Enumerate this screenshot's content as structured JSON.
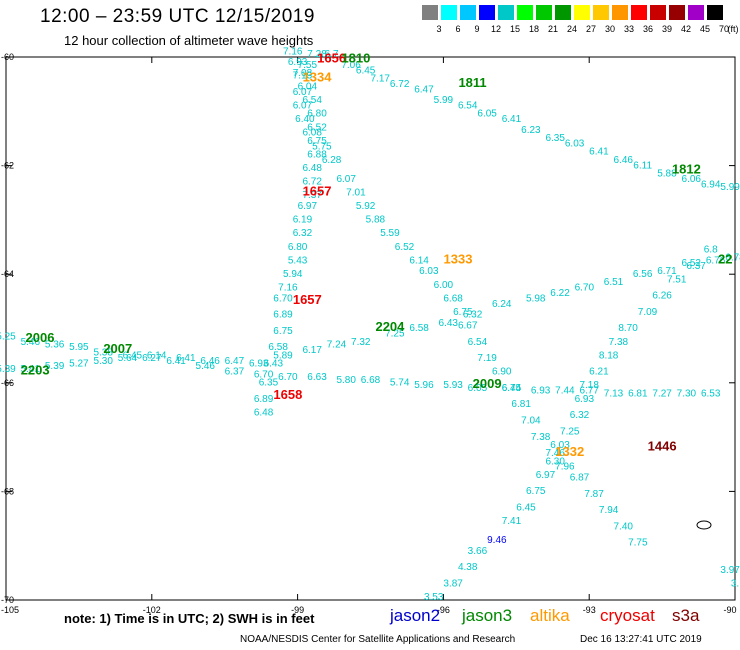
{
  "header": {
    "title": "12:00 – 23:59 UTC 12/15/2019",
    "subtitle": "12 hour collection of altimeter wave heights"
  },
  "color_scale": {
    "unit": "(ft)",
    "ticks": [
      "3",
      "6",
      "9",
      "12",
      "15",
      "18",
      "21",
      "24",
      "27",
      "30",
      "33",
      "36",
      "39",
      "42",
      "45",
      "70"
    ],
    "colors": [
      "#808080",
      "#00ffff",
      "#00c8ff",
      "#0000ff",
      "#00c8c8",
      "#00ff00",
      "#00c800",
      "#009600",
      "#ffff00",
      "#ffc800",
      "#ff9600",
      "#ff0000",
      "#c80000",
      "#960000",
      "#a000c8",
      "#000000"
    ]
  },
  "axes": {
    "lon_labels": [
      "-105",
      "-102",
      "-99",
      "-96",
      "-93",
      "-90"
    ],
    "lat_labels": [
      "-60",
      "-62",
      "-64",
      "-66",
      "-68",
      "-70"
    ]
  },
  "time_labels": [
    {
      "text": "1656",
      "sat": "cryosat",
      "lon": -98.3,
      "lat": -60.1
    },
    {
      "text": "1810",
      "sat": "jason3",
      "lon": -97.8,
      "lat": -60.1
    },
    {
      "text": "1334",
      "sat": "altika",
      "lon": -98.6,
      "lat": -60.45
    },
    {
      "text": "1811",
      "sat": "jason3",
      "lon": -95.4,
      "lat": -60.55
    },
    {
      "text": "1812",
      "sat": "jason3",
      "lon": -91.0,
      "lat": -62.15
    },
    {
      "text": "1657",
      "sat": "cryosat",
      "lon": -98.6,
      "lat": -62.55
    },
    {
      "text": "1333",
      "sat": "altika",
      "lon": -95.7,
      "lat": -63.8
    },
    {
      "text": "1657",
      "sat": "cryosat",
      "lon": -98.8,
      "lat": -64.55
    },
    {
      "text": "2204",
      "sat": "jason3",
      "lon": -97.1,
      "lat": -65.05
    },
    {
      "text": "2006",
      "sat": "jason3",
      "lon": -104.3,
      "lat": -65.25
    },
    {
      "text": "2007",
      "sat": "jason3",
      "lon": -102.7,
      "lat": -65.45
    },
    {
      "text": "2203",
      "sat": "jason3",
      "lon": -104.4,
      "lat": -65.85
    },
    {
      "text": "2009",
      "sat": "jason3",
      "lon": -95.1,
      "lat": -66.1
    },
    {
      "text": "1658",
      "sat": "cryosat",
      "lon": -99.2,
      "lat": -66.3
    },
    {
      "text": "1332",
      "sat": "altika",
      "lon": -93.4,
      "lat": -67.35
    },
    {
      "text": "1446",
      "sat": "s3a",
      "lon": -91.5,
      "lat": -67.25
    },
    {
      "text": "22",
      "sat": "jason3",
      "lon": -90.2,
      "lat": -63.8
    }
  ],
  "tracks": [
    {
      "name": "cryosat-descending",
      "points": [
        {
          "lon": -98.6,
          "lat": -60.0,
          "v": "7.28"
        },
        {
          "lon": -98.3,
          "lat": -60.0,
          "v": "6.7"
        },
        {
          "lon": -98.8,
          "lat": -60.2,
          "v": "7.55"
        },
        {
          "lon": -98.9,
          "lat": -60.4,
          "v": "7.13"
        },
        {
          "lon": -98.9,
          "lat": -60.7,
          "v": "6.07"
        },
        {
          "lon": -98.9,
          "lat": -60.95,
          "v": "6.07"
        },
        {
          "lon": -98.85,
          "lat": -61.2,
          "v": "6.40"
        },
        {
          "lon": -98.7,
          "lat": -61.45,
          "v": "6.08"
        },
        {
          "lon": -98.5,
          "lat": -61.7,
          "v": "5.75"
        },
        {
          "lon": -98.3,
          "lat": -61.95,
          "v": "6.28"
        },
        {
          "lon": -98.0,
          "lat": -62.3,
          "v": "6.07"
        },
        {
          "lon": -97.8,
          "lat": -62.55,
          "v": "7.01"
        },
        {
          "lon": -97.6,
          "lat": -62.8,
          "v": "5.92"
        },
        {
          "lon": -97.4,
          "lat": -63.05,
          "v": "5.88"
        },
        {
          "lon": -97.1,
          "lat": -63.3,
          "v": "5.59"
        },
        {
          "lon": -96.8,
          "lat": -63.55,
          "v": "6.52"
        },
        {
          "lon": -96.5,
          "lat": -63.8,
          "v": "6.14"
        },
        {
          "lon": -96.3,
          "lat": -64.0,
          "v": "6.03"
        },
        {
          "lon": -96.0,
          "lat": -64.25,
          "v": "6.00"
        },
        {
          "lon": -95.8,
          "lat": -64.5,
          "v": "6.68"
        },
        {
          "lon": -95.6,
          "lat": -64.75,
          "v": "6.75"
        },
        {
          "lon": -95.5,
          "lat": -65.0,
          "v": "6.67"
        },
        {
          "lon": -95.3,
          "lat": -65.3,
          "v": "6.54"
        },
        {
          "lon": -95.1,
          "lat": -65.6,
          "v": "7.19"
        },
        {
          "lon": -94.8,
          "lat": -65.85,
          "v": "6.90"
        },
        {
          "lon": -94.6,
          "lat": -66.15,
          "v": "6.74"
        },
        {
          "lon": -94.4,
          "lat": -66.45,
          "v": "6.81"
        },
        {
          "lon": -94.2,
          "lat": -66.75,
          "v": "7.04"
        },
        {
          "lon": -94.0,
          "lat": -67.05,
          "v": "7.38"
        },
        {
          "lon": -93.7,
          "lat": -67.35,
          "v": "7.46"
        },
        {
          "lon": -93.5,
          "lat": -67.6,
          "v": "7.96"
        },
        {
          "lon": -93.2,
          "lat": -67.8,
          "v": "6.87"
        },
        {
          "lon": -92.9,
          "lat": -68.1,
          "v": "7.87"
        },
        {
          "lon": -92.6,
          "lat": -68.4,
          "v": "7.94"
        },
        {
          "lon": -92.3,
          "lat": -68.7,
          "v": "7.40"
        },
        {
          "lon": -92.0,
          "lat": -69.0,
          "v": "7.75"
        }
      ]
    },
    {
      "name": "cryosat-ascending",
      "points": [
        {
          "lon": -99.7,
          "lat": -66.6,
          "v": "6.48"
        },
        {
          "lon": -99.7,
          "lat": -66.35,
          "v": "6.89"
        },
        {
          "lon": -99.6,
          "lat": -66.05,
          "v": "6.35"
        },
        {
          "lon": -99.5,
          "lat": -65.7,
          "v": "6.43"
        },
        {
          "lon": -99.4,
          "lat": -65.4,
          "v": "6.58"
        },
        {
          "lon": -99.3,
          "lat": -65.1,
          "v": "6.75"
        },
        {
          "lon": -99.3,
          "lat": -64.8,
          "v": "6.89"
        },
        {
          "lon": -99.3,
          "lat": -64.5,
          "v": "6.70"
        },
        {
          "lon": -99.2,
          "lat": -64.3,
          "v": "7.16"
        },
        {
          "lon": -99.1,
          "lat": -64.05,
          "v": "5.94"
        },
        {
          "lon": -99.0,
          "lat": -63.8,
          "v": "5.43"
        },
        {
          "lon": -99.0,
          "lat": -63.55,
          "v": "6.80"
        },
        {
          "lon": -98.9,
          "lat": -63.3,
          "v": "6.32"
        },
        {
          "lon": -98.9,
          "lat": -63.05,
          "v": "6.19"
        },
        {
          "lon": -98.8,
          "lat": -62.8,
          "v": "6.97"
        },
        {
          "lon": -98.7,
          "lat": -62.6,
          "v": "7.37"
        },
        {
          "lon": -98.7,
          "lat": -62.35,
          "v": "6.72"
        },
        {
          "lon": -98.7,
          "lat": -62.1,
          "v": "6.48"
        },
        {
          "lon": -98.6,
          "lat": -61.85,
          "v": "6.88"
        },
        {
          "lon": -98.6,
          "lat": -61.6,
          "v": "6.75"
        },
        {
          "lon": -98.6,
          "lat": -61.35,
          "v": "6.52"
        },
        {
          "lon": -98.6,
          "lat": -61.1,
          "v": "6.80"
        },
        {
          "lon": -98.7,
          "lat": -60.85,
          "v": "6.54"
        },
        {
          "lon": -98.8,
          "lat": -60.6,
          "v": "6.04"
        },
        {
          "lon": -98.9,
          "lat": -60.35,
          "v": "7.08"
        },
        {
          "lon": -99.0,
          "lat": -60.15,
          "v": "6.93"
        },
        {
          "lon": -99.1,
          "lat": -59.95,
          "v": "7.16"
        }
      ]
    },
    {
      "name": "jason3-east",
      "points": [
        {
          "lon": -97.9,
          "lat": -60.2,
          "v": "7.06"
        },
        {
          "lon": -97.6,
          "lat": -60.3,
          "v": "6.45"
        },
        {
          "lon": -97.3,
          "lat": -60.45,
          "v": "7.17"
        },
        {
          "lon": -96.9,
          "lat": -60.55,
          "v": "6.72"
        },
        {
          "lon": -96.4,
          "lat": -60.65,
          "v": "6.47"
        },
        {
          "lon": -96.0,
          "lat": -60.85,
          "v": "5.99"
        },
        {
          "lon": -95.5,
          "lat": -60.95,
          "v": "6.54"
        },
        {
          "lon": -95.1,
          "lat": -61.1,
          "v": "6.05"
        },
        {
          "lon": -94.6,
          "lat": -61.2,
          "v": "6.41"
        },
        {
          "lon": -94.2,
          "lat": -61.4,
          "v": "6.23"
        },
        {
          "lon": -93.7,
          "lat": -61.55,
          "v": "6.35"
        },
        {
          "lon": -93.3,
          "lat": -61.65,
          "v": "6.03"
        },
        {
          "lon": -92.8,
          "lat": -61.8,
          "v": "6.41"
        },
        {
          "lon": -92.3,
          "lat": -61.95,
          "v": "6.46"
        },
        {
          "lon": -91.9,
          "lat": -62.05,
          "v": "6.11"
        },
        {
          "lon": -91.4,
          "lat": -62.2,
          "v": "5.88"
        },
        {
          "lon": -90.9,
          "lat": -62.3,
          "v": "6.06"
        },
        {
          "lon": -90.5,
          "lat": -62.4,
          "v": "6.94"
        },
        {
          "lon": -90.1,
          "lat": -62.45,
          "v": "5.99"
        },
        {
          "lon": -89.7,
          "lat": -62.55,
          "v": "6.51"
        }
      ]
    },
    {
      "name": "jason3-west",
      "points": [
        {
          "lon": -105.0,
          "lat": -65.2,
          "v": "5.25"
        },
        {
          "lon": -104.5,
          "lat": -65.3,
          "v": "5.46"
        },
        {
          "lon": -104.0,
          "lat": -65.35,
          "v": "5.36"
        },
        {
          "lon": -103.5,
          "lat": -65.4,
          "v": "5.95"
        },
        {
          "lon": -103.0,
          "lat": -65.5,
          "v": "5.38"
        },
        {
          "lon": -102.4,
          "lat": -65.55,
          "v": "6.45"
        },
        {
          "lon": -101.9,
          "lat": -65.55,
          "v": "6.14"
        },
        {
          "lon": -101.3,
          "lat": -65.6,
          "v": "6.41"
        },
        {
          "lon": -100.8,
          "lat": -65.65,
          "v": "6.46"
        },
        {
          "lon": -100.3,
          "lat": -65.65,
          "v": "6.47"
        },
        {
          "lon": -99.8,
          "lat": -65.7,
          "v": "6.93"
        },
        {
          "lon": -99.3,
          "lat": -65.55,
          "v": "5.89"
        },
        {
          "lon": -98.7,
          "lat": -65.45,
          "v": "6.17"
        },
        {
          "lon": -98.2,
          "lat": -65.35,
          "v": "7.24"
        },
        {
          "lon": -97.7,
          "lat": -65.3,
          "v": "7.32"
        },
        {
          "lon": -97.0,
          "lat": -65.15,
          "v": "7.25"
        },
        {
          "lon": -96.5,
          "lat": -65.05,
          "v": "6.58"
        },
        {
          "lon": -95.9,
          "lat": -64.95,
          "v": "6.43"
        },
        {
          "lon": -95.4,
          "lat": -64.8,
          "v": "6.32"
        },
        {
          "lon": -94.8,
          "lat": -64.6,
          "v": "6.24"
        },
        {
          "lon": -94.1,
          "lat": -64.5,
          "v": "5.98"
        },
        {
          "lon": -93.6,
          "lat": -64.4,
          "v": "6.22"
        },
        {
          "lon": -93.1,
          "lat": -64.3,
          "v": "6.70"
        },
        {
          "lon": -92.5,
          "lat": -64.2,
          "v": "6.51"
        },
        {
          "lon": -91.9,
          "lat": -64.05,
          "v": "6.56"
        },
        {
          "lon": -91.4,
          "lat": -64.0,
          "v": "6.71"
        },
        {
          "lon": -90.9,
          "lat": -63.85,
          "v": "6.52"
        },
        {
          "lon": -90.4,
          "lat": -63.8,
          "v": "6.76"
        },
        {
          "lon": -90.0,
          "lat": -63.75,
          "v": "6.78"
        }
      ]
    },
    {
      "name": "jason3-lower",
      "points": [
        {
          "lon": -105.0,
          "lat": -65.8,
          "v": "5.39"
        },
        {
          "lon": -104.5,
          "lat": -65.8,
          "v": "5.41"
        },
        {
          "lon": -104.0,
          "lat": -65.75,
          "v": "5.39"
        },
        {
          "lon": -103.5,
          "lat": -65.7,
          "v": "5.27"
        },
        {
          "lon": -103.0,
          "lat": -65.65,
          "v": "5.30"
        },
        {
          "lon": -102.5,
          "lat": -65.6,
          "v": "5.64"
        },
        {
          "lon": -102.0,
          "lat": -65.6,
          "v": "6.27"
        },
        {
          "lon": -101.5,
          "lat": -65.65,
          "v": "6.41"
        },
        {
          "lon": -100.9,
          "lat": -65.75,
          "v": "5.46"
        },
        {
          "lon": -100.3,
          "lat": -65.85,
          "v": "6.37"
        },
        {
          "lon": -99.7,
          "lat": -65.9,
          "v": "6.70"
        },
        {
          "lon": -99.2,
          "lat": -65.95,
          "v": "6.70"
        },
        {
          "lon": -98.6,
          "lat": -65.95,
          "v": "6.63"
        },
        {
          "lon": -98.0,
          "lat": -66.0,
          "v": "5.80"
        },
        {
          "lon": -97.5,
          "lat": -66.0,
          "v": "6.68"
        },
        {
          "lon": -96.9,
          "lat": -66.05,
          "v": "5.74"
        },
        {
          "lon": -96.4,
          "lat": -66.1,
          "v": "5.96"
        },
        {
          "lon": -95.8,
          "lat": -66.1,
          "v": "5.93"
        },
        {
          "lon": -95.3,
          "lat": -66.15,
          "v": "6.05"
        },
        {
          "lon": -94.6,
          "lat": -66.15,
          "v": "6.45"
        },
        {
          "lon": -94.0,
          "lat": -66.2,
          "v": "6.93"
        },
        {
          "lon": -93.5,
          "lat": -66.2,
          "v": "7.44"
        },
        {
          "lon": -93.0,
          "lat": -66.2,
          "v": "6.77"
        },
        {
          "lon": -92.5,
          "lat": -66.25,
          "v": "7.13"
        },
        {
          "lon": -92.0,
          "lat": -66.25,
          "v": "6.81"
        },
        {
          "lon": -91.5,
          "lat": -66.25,
          "v": "7.27"
        },
        {
          "lon": -91.0,
          "lat": -66.25,
          "v": "7.30"
        },
        {
          "lon": -90.5,
          "lat": -66.25,
          "v": "6.53"
        }
      ]
    },
    {
      "name": "altika",
      "points": [
        {
          "lon": -96.2,
          "lat": -70.0,
          "v": "3.53"
        },
        {
          "lon": -95.8,
          "lat": -69.75,
          "v": "3.87"
        },
        {
          "lon": -95.5,
          "lat": -69.45,
          "v": "4.38"
        },
        {
          "lon": -95.3,
          "lat": -69.15,
          "v": "3.66"
        },
        {
          "lon": -94.9,
          "lat": -68.95,
          "v": "9.46"
        },
        {
          "lon": -94.6,
          "lat": -68.6,
          "v": "7.41"
        },
        {
          "lon": -94.3,
          "lat": -68.35,
          "v": "6.45"
        },
        {
          "lon": -94.1,
          "lat": -68.05,
          "v": "6.75"
        },
        {
          "lon": -93.9,
          "lat": -67.75,
          "v": "6.97"
        },
        {
          "lon": -93.7,
          "lat": -67.5,
          "v": "6.30"
        },
        {
          "lon": -93.6,
          "lat": -67.2,
          "v": "6.03"
        },
        {
          "lon": -93.4,
          "lat": -66.95,
          "v": "7.25"
        },
        {
          "lon": -93.2,
          "lat": -66.65,
          "v": "6.32"
        },
        {
          "lon": -93.1,
          "lat": -66.35,
          "v": "6.93"
        },
        {
          "lon": -93.0,
          "lat": -66.1,
          "v": "7.18"
        },
        {
          "lon": -92.8,
          "lat": -65.85,
          "v": "6.21"
        },
        {
          "lon": -92.6,
          "lat": -65.55,
          "v": "8.18"
        },
        {
          "lon": -92.4,
          "lat": -65.3,
          "v": "7.38"
        },
        {
          "lon": -92.2,
          "lat": -65.05,
          "v": "8.70"
        },
        {
          "lon": -91.8,
          "lat": -64.75,
          "v": "7.09"
        },
        {
          "lon": -91.5,
          "lat": -64.45,
          "v": "6.26"
        },
        {
          "lon": -91.2,
          "lat": -64.15,
          "v": "7.51"
        },
        {
          "lon": -90.8,
          "lat": -63.9,
          "v": "6.37"
        },
        {
          "lon": -90.5,
          "lat": -63.6,
          "v": "6.8"
        }
      ]
    },
    {
      "name": "east-edge",
      "points": [
        {
          "lon": -90.1,
          "lat": -69.5,
          "v": "3.97"
        },
        {
          "lon": -90.0,
          "lat": -69.75,
          "v": "3."
        }
      ]
    }
  ],
  "sat_legend": [
    {
      "name": "jason2",
      "color": "#0000cc"
    },
    {
      "name": "jason3",
      "color": "#008800"
    },
    {
      "name": "altika",
      "color": "#ff9900"
    },
    {
      "name": "cryosat",
      "color": "#ee0000"
    },
    {
      "name": "s3a",
      "color": "#800000"
    }
  ],
  "note": "note:  1) Time is in UTC;  2) SWH is in feet",
  "footer": {
    "credit": "NOAA/NESDIS Center for Satellite Applications and Research",
    "generated": "Dec 16 13:27:41 UTC 2019"
  }
}
